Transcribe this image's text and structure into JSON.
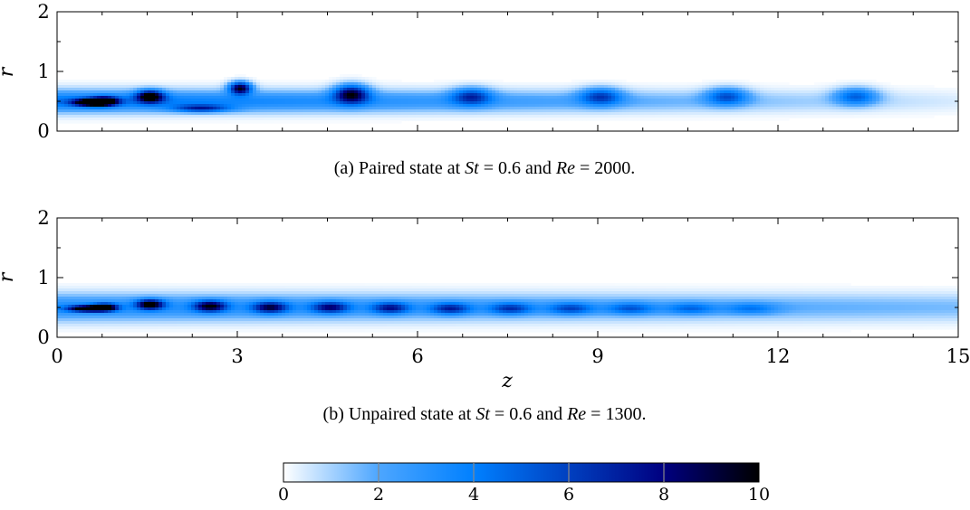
{
  "chart_data": [
    {
      "type": "heatmap",
      "panel": "a",
      "ylabel": "r",
      "xlabel": "",
      "xlim": [
        0,
        15
      ],
      "ylim": [
        0,
        2
      ],
      "yticks": [
        0,
        1,
        2
      ],
      "xticks": [
        0,
        3,
        6,
        9,
        12,
        15
      ],
      "show_x_tick_labels": false,
      "caption": {
        "prefix": "(a) Paired state at ",
        "v1": "St",
        "mid": " = 0.6 and ",
        "v2": "Re",
        "suffix": " = 2000."
      },
      "vortices": [
        {
          "z": 0.55,
          "r": 0.48,
          "amp": 9.5,
          "wz": 0.28,
          "wr": 0.06
        },
        {
          "z": 0.8,
          "r": 0.5,
          "amp": 9.0,
          "wz": 0.22,
          "wr": 0.07
        },
        {
          "z": 1.55,
          "r": 0.58,
          "amp": 9.0,
          "wz": 0.22,
          "wr": 0.1
        },
        {
          "z": 2.4,
          "r": 0.38,
          "amp": 5.0,
          "wz": 0.45,
          "wr": 0.06
        },
        {
          "z": 3.05,
          "r": 0.72,
          "amp": 9.0,
          "wz": 0.18,
          "wr": 0.1
        },
        {
          "z": 4.9,
          "r": 0.62,
          "amp": 8.0,
          "wz": 0.28,
          "wr": 0.15
        },
        {
          "z": 6.9,
          "r": 0.58,
          "amp": 5.0,
          "wz": 0.32,
          "wr": 0.14
        },
        {
          "z": 9.05,
          "r": 0.58,
          "amp": 4.8,
          "wz": 0.34,
          "wr": 0.14
        },
        {
          "z": 11.15,
          "r": 0.58,
          "amp": 4.5,
          "wz": 0.34,
          "wr": 0.14
        },
        {
          "z": 13.3,
          "r": 0.58,
          "amp": 4.3,
          "wz": 0.35,
          "wr": 0.14
        }
      ],
      "shear_layer": {
        "z_start": 0.0,
        "z_end": 15.0,
        "r": 0.5,
        "amp_start": 8.0,
        "amp_end": 0.8,
        "wr": 0.18
      }
    },
    {
      "type": "heatmap",
      "panel": "b",
      "ylabel": "r",
      "xlabel": "z",
      "xlim": [
        0,
        15
      ],
      "ylim": [
        0,
        2
      ],
      "yticks": [
        0,
        1,
        2
      ],
      "xticks": [
        0,
        3,
        6,
        9,
        12,
        15
      ],
      "show_x_tick_labels": true,
      "caption": {
        "prefix": "(b) Unpaired state at ",
        "v1": "St",
        "mid": " = 0.6 and ",
        "v2": "Re",
        "suffix": " = 1300."
      },
      "vortices": [
        {
          "z": 0.5,
          "r": 0.48,
          "amp": 9.5,
          "wz": 0.3,
          "wr": 0.05
        },
        {
          "z": 0.8,
          "r": 0.5,
          "amp": 8.5,
          "wz": 0.2,
          "wr": 0.06
        },
        {
          "z": 1.55,
          "r": 0.55,
          "amp": 8.5,
          "wz": 0.22,
          "wr": 0.08
        },
        {
          "z": 2.55,
          "r": 0.52,
          "amp": 7.5,
          "wz": 0.26,
          "wr": 0.09
        },
        {
          "z": 3.55,
          "r": 0.5,
          "amp": 6.5,
          "wz": 0.28,
          "wr": 0.09
        },
        {
          "z": 4.55,
          "r": 0.5,
          "amp": 5.8,
          "wz": 0.3,
          "wr": 0.09
        },
        {
          "z": 5.55,
          "r": 0.49,
          "amp": 5.2,
          "wz": 0.3,
          "wr": 0.09
        },
        {
          "z": 6.55,
          "r": 0.48,
          "amp": 4.8,
          "wz": 0.32,
          "wr": 0.09
        },
        {
          "z": 7.55,
          "r": 0.48,
          "amp": 4.3,
          "wz": 0.34,
          "wr": 0.09
        },
        {
          "z": 8.55,
          "r": 0.48,
          "amp": 3.8,
          "wz": 0.36,
          "wr": 0.09
        },
        {
          "z": 9.55,
          "r": 0.48,
          "amp": 3.3,
          "wz": 0.38,
          "wr": 0.09
        },
        {
          "z": 10.55,
          "r": 0.48,
          "amp": 2.9,
          "wz": 0.4,
          "wr": 0.09
        },
        {
          "z": 11.55,
          "r": 0.48,
          "amp": 2.5,
          "wz": 0.42,
          "wr": 0.09
        }
      ],
      "shear_layer": {
        "z_start": 0.0,
        "z_end": 15.0,
        "r": 0.5,
        "amp_start": 6.0,
        "amp_end": 2.8,
        "wr": 0.22
      }
    }
  ],
  "colorbar": {
    "min": 0,
    "max": 10,
    "ticks": [
      0,
      2,
      4,
      6,
      8,
      10
    ],
    "colors": [
      "#ffffff",
      "#4da6ff",
      "#0080ff",
      "#0040c0",
      "#000080",
      "#000000"
    ]
  }
}
